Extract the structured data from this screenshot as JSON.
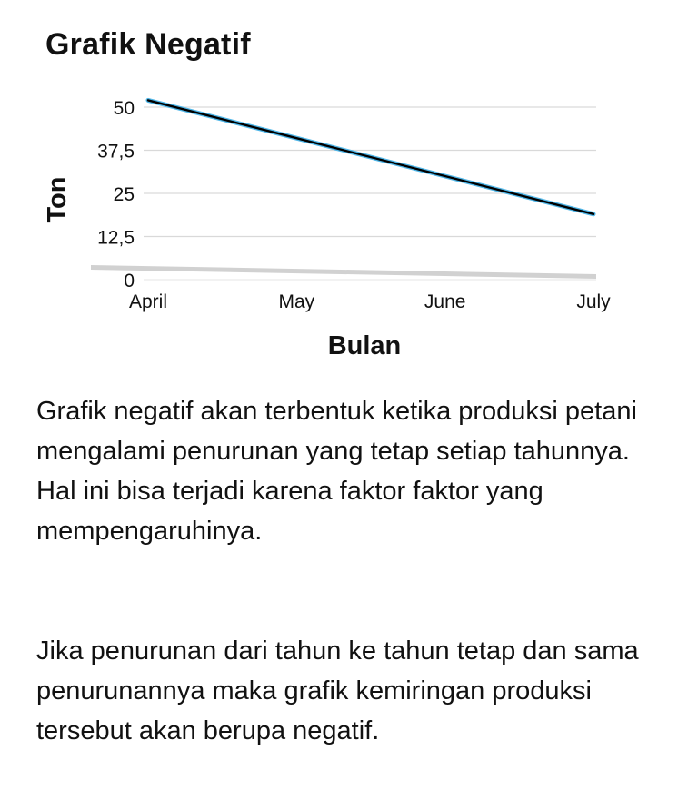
{
  "chart_data": {
    "type": "line",
    "title": "Grafik Negatif",
    "xlabel": "Bulan",
    "ylabel": "Ton",
    "categories": [
      "April",
      "May",
      "June",
      "July"
    ],
    "ylim": [
      0,
      50
    ],
    "yticks": [
      "0",
      "12,5",
      "25",
      "37,5",
      "50"
    ],
    "ytick_values": [
      0,
      12.5,
      25,
      37.5,
      50
    ],
    "series": [
      {
        "values": [
          52,
          41,
          30,
          19
        ]
      }
    ],
    "grid": "horizontal",
    "colors": {
      "line": "#000000",
      "line_highlight": "#4fb6e8",
      "grid": "#d9d9d9"
    }
  },
  "paragraphs": [
    "Grafik negatif akan terbentuk ketika produksi petani mengalami penurunan yang tetap setiap tahunnya. Hal ini bisa terjadi karena faktor faktor yang mempengaruhinya.",
    "Jika penurunan dari tahun ke tahun tetap dan sama penurunannya maka grafik kemiringan produksi tersebut akan berupa negatif."
  ]
}
